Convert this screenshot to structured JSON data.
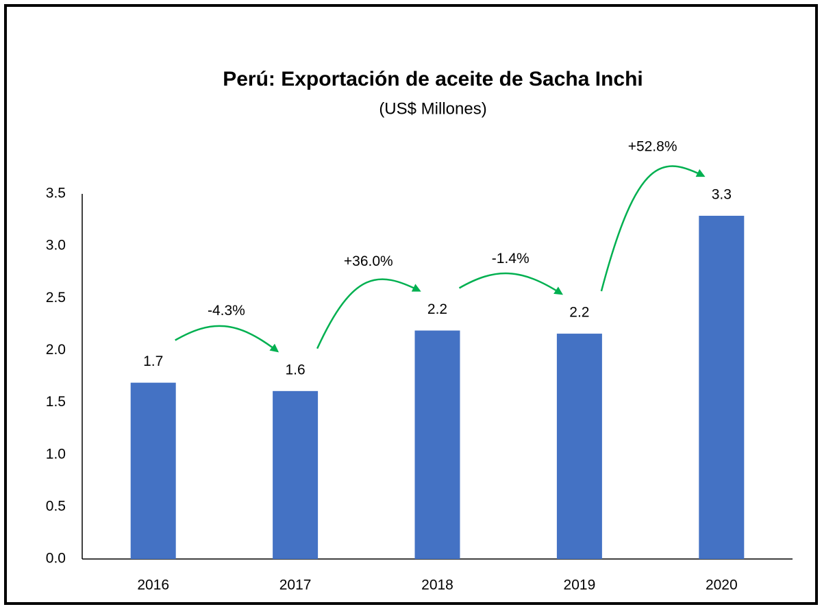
{
  "chart_data": {
    "type": "bar",
    "title": "Perú: Exportación de aceite de Sacha Inchi",
    "subtitle": "(US$ Millones)",
    "categories": [
      "2016",
      "2017",
      "2018",
      "2019",
      "2020"
    ],
    "values": [
      1.69,
      1.61,
      2.19,
      2.16,
      3.29
    ],
    "value_labels": [
      "1.7",
      "1.6",
      "2.2",
      "2.2",
      "3.3"
    ],
    "color": "#4472c4",
    "annotations": [
      "-4.3%",
      "+36.0%",
      "-1.4%",
      "+52.8%"
    ],
    "annotation_color": "#00b050",
    "ylim": [
      0,
      3.5
    ],
    "yticks": [
      {
        "value": 0,
        "label": "0.0"
      },
      0.5,
      {
        "value": 1,
        "label": "1.0"
      },
      1.5,
      {
        "value": 2,
        "label": "2.0"
      },
      2.5,
      {
        "value": 3,
        "label": "3.0"
      },
      3.5
    ],
    "grid": false
  }
}
